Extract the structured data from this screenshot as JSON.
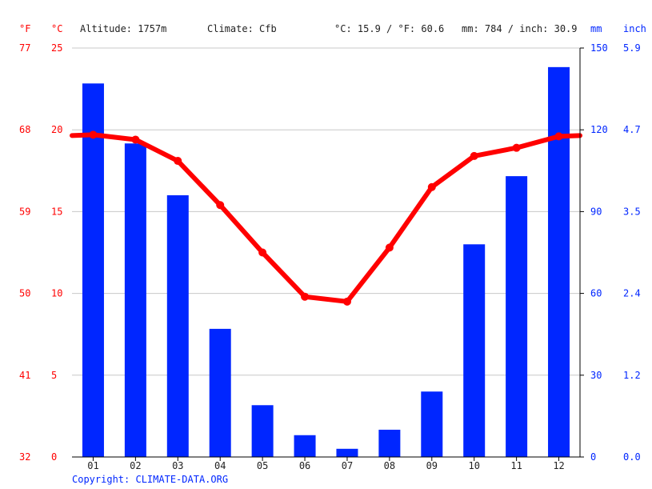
{
  "header": {
    "unit_f": "°F",
    "unit_c": "°C",
    "altitude": "Altitude: 1757m",
    "climate": "Climate: Cfb",
    "avg_temp": "°C: 15.9 / °F: 60.6",
    "avg_precip": "mm: 784 / inch: 30.9",
    "unit_mm": "mm",
    "unit_inch": "inch"
  },
  "copyright": "Copyright: CLIMATE-DATA.ORG",
  "colors": {
    "temperature": "#ff0000",
    "precipitation": "#0026ff",
    "grid": "#c8c8c8"
  },
  "chart_data": {
    "type": "bar",
    "categories": [
      "01",
      "02",
      "03",
      "04",
      "05",
      "06",
      "07",
      "08",
      "09",
      "10",
      "11",
      "12"
    ],
    "series": [
      {
        "kind": "bar",
        "axis": "right",
        "unit": "mm",
        "values": [
          137,
          115,
          96,
          47,
          19,
          8,
          3,
          10,
          24,
          78,
          103,
          143
        ]
      },
      {
        "kind": "line",
        "axis": "left",
        "unit": "°C",
        "values": [
          19.7,
          19.4,
          18.1,
          15.4,
          12.5,
          9.8,
          9.5,
          12.8,
          16.5,
          18.4,
          18.9,
          19.6
        ]
      }
    ],
    "y_left_c": {
      "ticks": [
        "25",
        "20",
        "15",
        "10",
        "5",
        "0"
      ],
      "ylim": [
        0,
        25
      ]
    },
    "y_left_f": {
      "ticks": [
        "77",
        "68",
        "59",
        "50",
        "41",
        "32"
      ]
    },
    "y_right_mm": {
      "ticks": [
        "150",
        "120",
        "90",
        "60",
        "30",
        "0"
      ],
      "ylim": [
        0,
        150
      ]
    },
    "y_right_inch": {
      "ticks": [
        "5.9",
        "4.7",
        "3.5",
        "2.4",
        "1.2",
        "0.0"
      ]
    },
    "grid": true
  }
}
